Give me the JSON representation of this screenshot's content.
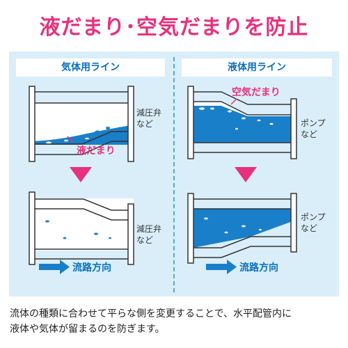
{
  "title": "液だまり･空気だまりを防止",
  "left_panel": {
    "header": "気体用ライン",
    "liquid_label": "液だまり",
    "device_label": [
      "減圧弁",
      "など"
    ],
    "flow_label": "流路方向"
  },
  "right_panel": {
    "header": "液体用ライン",
    "air_label": "空気だまり",
    "device_label": [
      "ポンプ",
      "など"
    ],
    "flow_label": "流路方向"
  },
  "caption": [
    "流体の種類に合わせて平らな側を変更することで、水平配管内に",
    "液体や気体が留まるのを防ぎます。"
  ],
  "colors": {
    "accent": "#e8317d",
    "water": "#1a7fc9",
    "panel": "#d9eef9",
    "header_text": "#0a6fbc"
  }
}
